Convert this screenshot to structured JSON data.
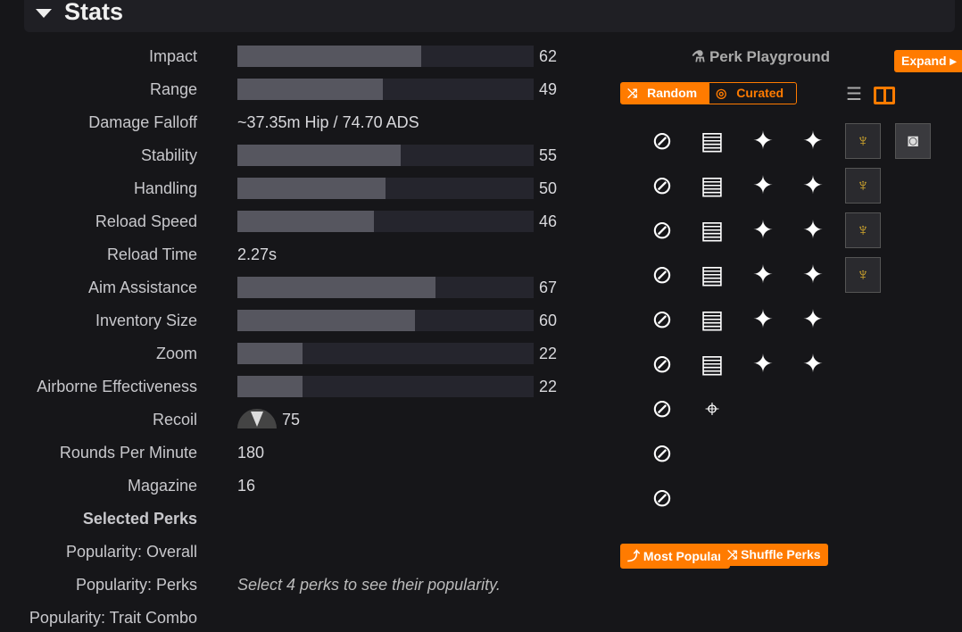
{
  "header": {
    "title": "Stats"
  },
  "stats": [
    {
      "label": "Impact",
      "value": 62,
      "type": "bar"
    },
    {
      "label": "Range",
      "value": 49,
      "type": "bar"
    },
    {
      "label": "Damage Falloff",
      "text": "~37.35m Hip / 74.70 ADS",
      "type": "text"
    },
    {
      "label": "Stability",
      "value": 55,
      "type": "bar"
    },
    {
      "label": "Handling",
      "value": 50,
      "type": "bar"
    },
    {
      "label": "Reload Speed",
      "value": 46,
      "type": "bar"
    },
    {
      "label": "Reload Time",
      "text": "2.27s",
      "type": "text"
    },
    {
      "label": "Aim Assistance",
      "value": 67,
      "type": "bar"
    },
    {
      "label": "Inventory Size",
      "value": 60,
      "type": "bar"
    },
    {
      "label": "Zoom",
      "value": 22,
      "type": "bar"
    },
    {
      "label": "Airborne Effectiveness",
      "value": 22,
      "type": "bar"
    },
    {
      "label": "Recoil",
      "value": 75,
      "type": "recoil"
    },
    {
      "label": "Rounds Per Minute",
      "text": "180",
      "type": "text"
    },
    {
      "label": "Magazine",
      "text": "16",
      "type": "text"
    },
    {
      "label": "Selected Perks",
      "type": "heading"
    },
    {
      "label": "Popularity: Overall",
      "type": "text",
      "text": ""
    },
    {
      "label": "Popularity: Perks",
      "text": "Select 4 perks to see their popularity.",
      "type": "italic"
    },
    {
      "label": "Popularity: Trait Combo",
      "type": "text",
      "text": ""
    }
  ],
  "playground": {
    "title": "Perk Playground",
    "expand": "Expand",
    "random": "Random",
    "curated": "Curated",
    "most_popular": "Most Popular",
    "shuffle": "Shuffle Perks",
    "accent": "#ff7b00"
  },
  "perk_columns": [
    [
      "barrel-icon",
      "barrel-icon",
      "barrel-icon",
      "barrel-icon",
      "barrel-icon",
      "barrel-icon",
      "barrel-icon",
      "barrel-icon",
      "barrel-icon"
    ],
    [
      "magazine-icon",
      "magazine-icon",
      "magazine-icon",
      "magazine-icon",
      "magazine-icon",
      "magazine-icon",
      "crosshair-icon"
    ],
    [
      "trait-icon",
      "trait-icon",
      "trait-icon",
      "trait-icon",
      "trait-icon",
      "trait-icon"
    ],
    [
      "trait-icon",
      "trait-icon",
      "trait-icon",
      "trait-icon",
      "trait-icon",
      "trait-icon"
    ],
    [
      "masterwork-icon",
      "masterwork-icon",
      "masterwork-icon",
      "masterwork-icon"
    ],
    [
      "mod-icon"
    ]
  ]
}
